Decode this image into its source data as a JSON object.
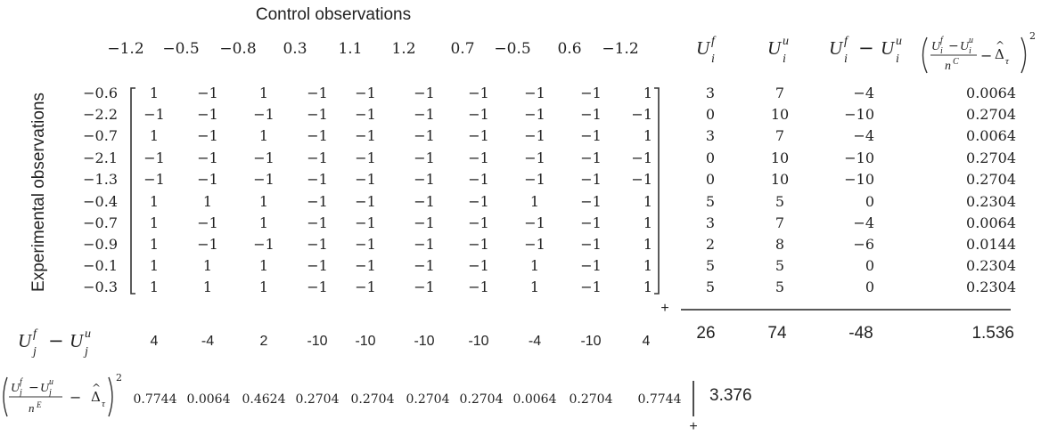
{
  "labels": {
    "control_title": "Control observations",
    "experimental_title": "Experimental observations",
    "plus": "+"
  },
  "control_values": [
    "−1.2",
    "−0.5",
    "−0.8",
    "0.3",
    "1.1",
    "1.2",
    "0.7",
    "−0.5",
    "0.6",
    "−1.2"
  ],
  "experimental_values": [
    "−0.6",
    "−2.2",
    "−0.7",
    "−2.1",
    "−1.3",
    "−0.4",
    "−0.7",
    "−0.9",
    "−0.1",
    "−0.3"
  ],
  "matrix": [
    [
      "1",
      "−1",
      "1",
      "−1",
      "−1",
      "−1",
      "−1",
      "−1",
      "−1",
      "1"
    ],
    [
      "−1",
      "−1",
      "−1",
      "−1",
      "−1",
      "−1",
      "−1",
      "−1",
      "−1",
      "−1"
    ],
    [
      "1",
      "−1",
      "1",
      "−1",
      "−1",
      "−1",
      "−1",
      "−1",
      "−1",
      "1"
    ],
    [
      "−1",
      "−1",
      "−1",
      "−1",
      "−1",
      "−1",
      "−1",
      "−1",
      "−1",
      "−1"
    ],
    [
      "−1",
      "−1",
      "−1",
      "−1",
      "−1",
      "−1",
      "−1",
      "−1",
      "−1",
      "−1"
    ],
    [
      "1",
      "1",
      "1",
      "−1",
      "−1",
      "−1",
      "−1",
      "1",
      "−1",
      "1"
    ],
    [
      "1",
      "−1",
      "1",
      "−1",
      "−1",
      "−1",
      "−1",
      "−1",
      "−1",
      "1"
    ],
    [
      "1",
      "−1",
      "−1",
      "−1",
      "−1",
      "−1",
      "−1",
      "−1",
      "−1",
      "1"
    ],
    [
      "1",
      "1",
      "1",
      "−1",
      "−1",
      "−1",
      "−1",
      "1",
      "−1",
      "1"
    ],
    [
      "1",
      "1",
      "1",
      "−1",
      "−1",
      "−1",
      "−1",
      "1",
      "−1",
      "1"
    ]
  ],
  "row_stats": [
    [
      "3",
      "7",
      "−4",
      "0.0064"
    ],
    [
      "0",
      "10",
      "−10",
      "0.2704"
    ],
    [
      "3",
      "7",
      "−4",
      "0.0064"
    ],
    [
      "0",
      "10",
      "−10",
      "0.2704"
    ],
    [
      "0",
      "10",
      "−10",
      "0.2704"
    ],
    [
      "5",
      "5",
      "0",
      "0.2304"
    ],
    [
      "3",
      "7",
      "−4",
      "0.0064"
    ],
    [
      "2",
      "8",
      "−6",
      "0.0144"
    ],
    [
      "5",
      "5",
      "0",
      "0.2304"
    ],
    [
      "5",
      "5",
      "0",
      "0.2304"
    ]
  ],
  "row_totals": [
    "26",
    "74",
    "-48",
    "1.536"
  ],
  "col_diff": [
    "4",
    "-4",
    "2",
    "-10",
    "-10",
    "-10",
    "-10",
    "-4",
    "-10",
    "4"
  ],
  "col_sq": [
    "0.7744",
    "0.0064",
    "0.4624",
    "0.2704",
    "0.2704",
    "0.2704",
    "0.2704",
    "0.0064",
    "0.2704",
    "0.7744"
  ],
  "col_sq_total": "3.376",
  "headers": {
    "U": "U",
    "i": "i",
    "j": "j",
    "f": "f",
    "u": "u",
    "minus": "−",
    "n": "n",
    "C": "C",
    "E": "E",
    "delta": "Δ",
    "hat": "^",
    "tau": "τ",
    "exp2": "2"
  }
}
